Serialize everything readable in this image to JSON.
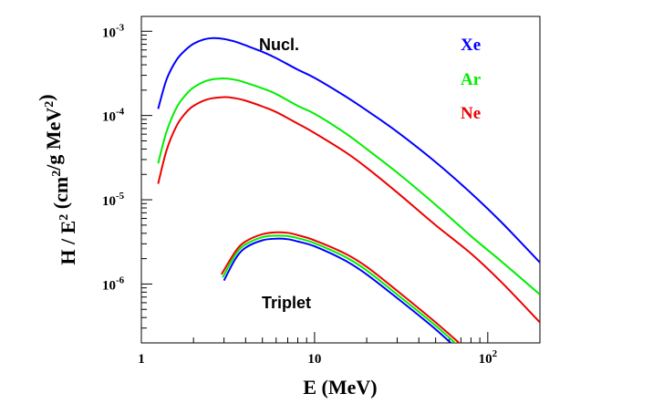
{
  "chart_data": {
    "type": "line",
    "xlabel": "E (MeV)",
    "ylabel": "H / E² (cm²/g MeV²)",
    "xscale": "log",
    "yscale": "log",
    "xlim": [
      1,
      200
    ],
    "ylim": [
      2e-07,
      0.0015
    ],
    "xticks": [
      {
        "label": "1"
      },
      {
        "label": "10"
      },
      {
        "label": "10",
        "sup": "2"
      }
    ],
    "yticks": [
      {
        "base": "10",
        "sup": "-3"
      },
      {
        "base": "10",
        "sup": "-4"
      },
      {
        "base": "10",
        "sup": "-5"
      },
      {
        "base": "10",
        "sup": "-6"
      }
    ],
    "annotations": {
      "nuclear": "Nucl.",
      "triplet": "Triplet"
    },
    "legend": {
      "placement": "top-right",
      "entries": [
        "Xe",
        "Ar",
        "Ne"
      ]
    },
    "colors": {
      "Xe": "#0000ff",
      "Ar": "#00ee00",
      "Ne": "#ee0000"
    },
    "series": [
      {
        "group": "Nucl.",
        "name": "Xe",
        "x": [
          1.25,
          1.4,
          1.6,
          1.8,
          2.0,
          2.3,
          2.6,
          3.0,
          3.5,
          4,
          5,
          6,
          8,
          10,
          15,
          20,
          30,
          50,
          80,
          120,
          200
        ],
        "y": [
          0.00012,
          0.00027,
          0.00046,
          0.0006,
          0.00071,
          0.0008,
          0.00083,
          0.00081,
          0.00075,
          0.00068,
          0.00057,
          0.00048,
          0.00035,
          0.00028,
          0.00017,
          0.000115,
          6.4e-05,
          2.8e-05,
          1.2e-05,
          5.4e-06,
          1.8e-06
        ]
      },
      {
        "group": "Nucl.",
        "name": "Ar",
        "x": [
          1.25,
          1.4,
          1.6,
          1.8,
          2.0,
          2.4,
          2.9,
          3.5,
          4,
          5,
          6,
          8,
          10,
          15,
          20,
          30,
          50,
          80,
          120,
          200
        ],
        "y": [
          2.7e-05,
          6.5e-05,
          0.000125,
          0.000175,
          0.000215,
          0.00026,
          0.000275,
          0.000265,
          0.000245,
          0.00021,
          0.00018,
          0.00013,
          0.000105,
          6.2e-05,
          4e-05,
          2.1e-05,
          8.7e-06,
          3.7e-06,
          1.85e-06,
          7.5e-07
        ]
      },
      {
        "group": "Nucl.",
        "name": "Ne",
        "x": [
          1.25,
          1.4,
          1.6,
          1.8,
          2.0,
          2.4,
          3.0,
          3.5,
          4,
          5,
          6,
          8,
          10,
          15,
          20,
          30,
          50,
          80,
          120,
          200
        ],
        "y": [
          1.55e-05,
          3.9e-05,
          7.6e-05,
          0.000107,
          0.00013,
          0.000155,
          0.000165,
          0.00016,
          0.00015,
          0.000128,
          0.00011,
          8e-05,
          6.2e-05,
          3.7e-05,
          2.4e-05,
          1.22e-05,
          5e-06,
          2.3e-06,
          1.05e-06,
          3.5e-07
        ]
      },
      {
        "group": "Triplet",
        "name": "Xe",
        "x": [
          3.0,
          3.5,
          4,
          5,
          6,
          7,
          8,
          10,
          15,
          20,
          30,
          50,
          80
        ],
        "y": [
          1.1e-06,
          2e-06,
          2.7e-06,
          3.3e-06,
          3.45e-06,
          3.4e-06,
          3.2e-06,
          2.8e-06,
          1.9e-06,
          1.3e-06,
          6.8e-07,
          2.9e-07,
          1.2e-07
        ]
      },
      {
        "group": "Triplet",
        "name": "Ar",
        "x": [
          2.95,
          3.5,
          4,
          5,
          6,
          7,
          8,
          10,
          15,
          20,
          30,
          50,
          80
        ],
        "y": [
          1.2e-06,
          2.25e-06,
          2.95e-06,
          3.6e-06,
          3.75e-06,
          3.7e-06,
          3.5e-06,
          3.05e-06,
          2.1e-06,
          1.45e-06,
          7.5e-07,
          3.2e-07,
          1.35e-07
        ]
      },
      {
        "group": "Triplet",
        "name": "Ne",
        "x": [
          2.9,
          3.5,
          4,
          5,
          6,
          7,
          8,
          10,
          15,
          20,
          30,
          50,
          80
        ],
        "y": [
          1.3e-06,
          2.45e-06,
          3.2e-06,
          3.9e-06,
          4.1e-06,
          4.05e-06,
          3.8e-06,
          3.3e-06,
          2.3e-06,
          1.6e-06,
          8.3e-07,
          3.5e-07,
          1.5e-07
        ]
      }
    ]
  }
}
